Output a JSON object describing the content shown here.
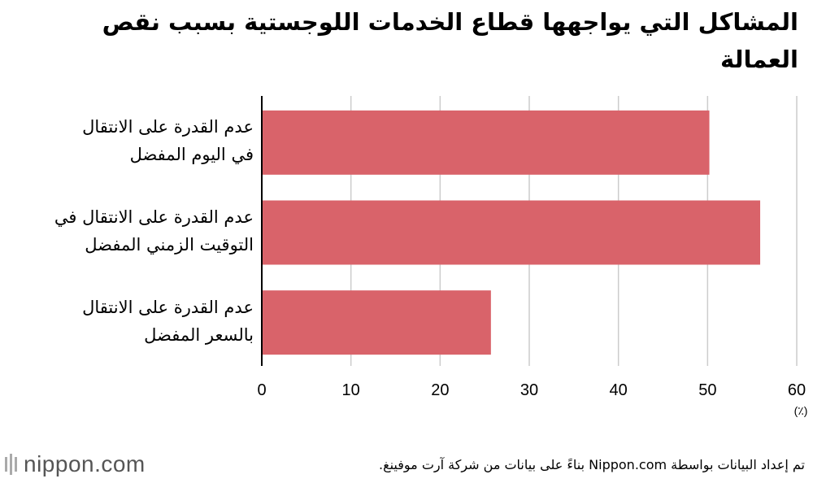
{
  "chart_data": {
    "type": "bar",
    "orientation": "horizontal",
    "title": "المشاكل التي يواجهها قطاع الخدمات اللوجستية بسبب نقص العمالة",
    "categories": [
      "عدم القدرة على الانتقال في اليوم المفضل",
      "عدم القدرة على الانتقال في التوقيت الزمني المفضل",
      "عدم القدرة على الانتقال بالسعر المفضل"
    ],
    "category_lines": [
      [
        "عدم القدرة على الانتقال",
        "في اليوم المفضل"
      ],
      [
        "عدم القدرة على الانتقال في",
        "التوقيت الزمني المفضل"
      ],
      [
        "عدم القدرة على الانتقال",
        "بالسعر المفضل"
      ]
    ],
    "values": [
      50.2,
      55.9,
      25.7
    ],
    "xlim": [
      0,
      60
    ],
    "xticks": [
      "0",
      "10",
      "20",
      "30",
      "40",
      "50",
      "60"
    ],
    "unit": "(٪)",
    "grid": true,
    "bar_color": "#d9636a",
    "grid_color": "#cccccc"
  },
  "footer": {
    "source": "تم إعداد البيانات بواسطة Nippon.com بناءً على بيانات من شركة آرت موفينغ.",
    "logo": "nippon.com"
  }
}
